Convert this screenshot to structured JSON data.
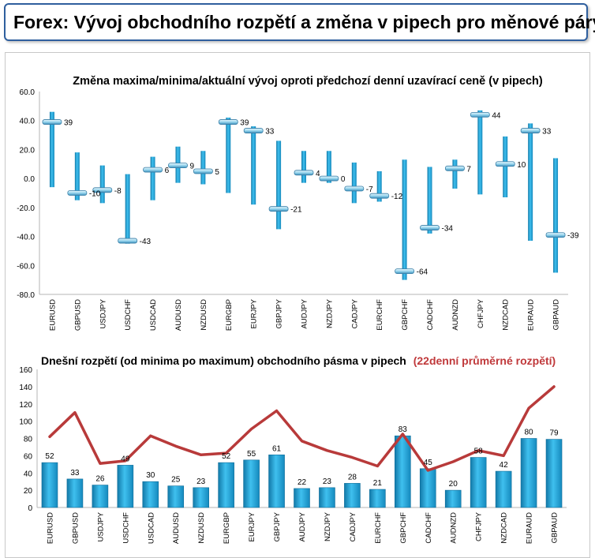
{
  "header": {
    "title": "Forex: Vývoj obchodního rozpětí a změna v pipech pro měnové páry"
  },
  "colors": {
    "bar": "#1fa3d9",
    "bar_dark": "#1279a8",
    "line": "#b83a3a",
    "accent_title": "#c0393b"
  },
  "chart_data": [
    {
      "type": "range-bar",
      "title": "Změna maxima/minima/aktuální vývoj oproti předchozí denní uzavírací ceně (v pipech)",
      "ylim": [
        -80,
        60
      ],
      "yticks": [
        "60.0",
        "40.0",
        "20.0",
        "0.0",
        "-20.0",
        "-40.0",
        "-60.0",
        "-80.0"
      ],
      "categories": [
        "EURUSD",
        "GBPUSD",
        "USDJPY",
        "USDCHF",
        "USDCAD",
        "AUDUSD",
        "NZDUSD",
        "EURGBP",
        "EURJPY",
        "GBPJPY",
        "AUDJPY",
        "NZDJPY",
        "CADJPY",
        "EURCHF",
        "GBPCHF",
        "CADCHF",
        "AUDNZD",
        "CHFJPY",
        "NZDCAD",
        "EURAUD",
        "GBPAUD"
      ],
      "high": [
        46,
        18,
        9,
        3,
        15,
        22,
        19,
        42,
        36,
        26,
        19,
        19,
        11,
        5,
        13,
        8,
        13,
        47,
        29,
        38,
        14
      ],
      "low": [
        -6,
        -15,
        -17,
        -45,
        -15,
        -3,
        -4,
        -10,
        -18,
        -35,
        -3,
        -3,
        -17,
        -16,
        -70,
        -38,
        -7,
        -11,
        -13,
        -43,
        -65
      ],
      "current": [
        39,
        -10,
        -8,
        -43,
        6,
        9,
        5,
        39,
        33,
        -21,
        4,
        0,
        -7,
        -12,
        -64,
        -34,
        7,
        44,
        10,
        33,
        -39
      ],
      "labels": [
        "39",
        "-10",
        "-8",
        "-43",
        "6",
        "9",
        "5",
        "39",
        "33",
        "-21",
        "4",
        "0",
        "-7",
        "-12",
        "-64",
        "-34",
        "7",
        "44",
        "10",
        "33",
        "-39"
      ]
    },
    {
      "type": "bar+line",
      "title": "Dnešní rozpětí (od minima po maximum) obchodního pásma v pipech",
      "title_highlight": "(22denní průměrné rozpětí)",
      "ylim": [
        0,
        160
      ],
      "yticks": [
        "160",
        "140",
        "120",
        "100",
        "80",
        "60",
        "40",
        "20",
        "0"
      ],
      "categories": [
        "EURUSD",
        "GBPUSD",
        "USDJPY",
        "USDCHF",
        "USDCAD",
        "AUDUSD",
        "NZDUSD",
        "EURGBP",
        "EURJPY",
        "GBPJPY",
        "AUDJPY",
        "NZDJPY",
        "CADJPY",
        "EURCHF",
        "GBPCHF",
        "CADCHF",
        "AUDNZD",
        "CHFJPY",
        "NZDCAD",
        "EURAUD",
        "GBPAUD"
      ],
      "series": [
        {
          "name": "Dnešní rozpětí",
          "type": "bar",
          "values": [
            52,
            33,
            26,
            49,
            30,
            25,
            23,
            52,
            55,
            61,
            22,
            23,
            28,
            21,
            83,
            45,
            20,
            58,
            42,
            80,
            79
          ]
        },
        {
          "name": "22denní průměrné rozpětí",
          "type": "line",
          "values": [
            82,
            110,
            51,
            54,
            83,
            71,
            61,
            63,
            91,
            112,
            77,
            66,
            58,
            48,
            85,
            43,
            53,
            66,
            60,
            115,
            140
          ]
        }
      ],
      "labels": [
        "52",
        "33",
        "26",
        "49",
        "30",
        "25",
        "23",
        "52",
        "55",
        "61",
        "22",
        "23",
        "28",
        "21",
        "83",
        "45",
        "20",
        "58",
        "42",
        "80",
        "79"
      ]
    }
  ]
}
